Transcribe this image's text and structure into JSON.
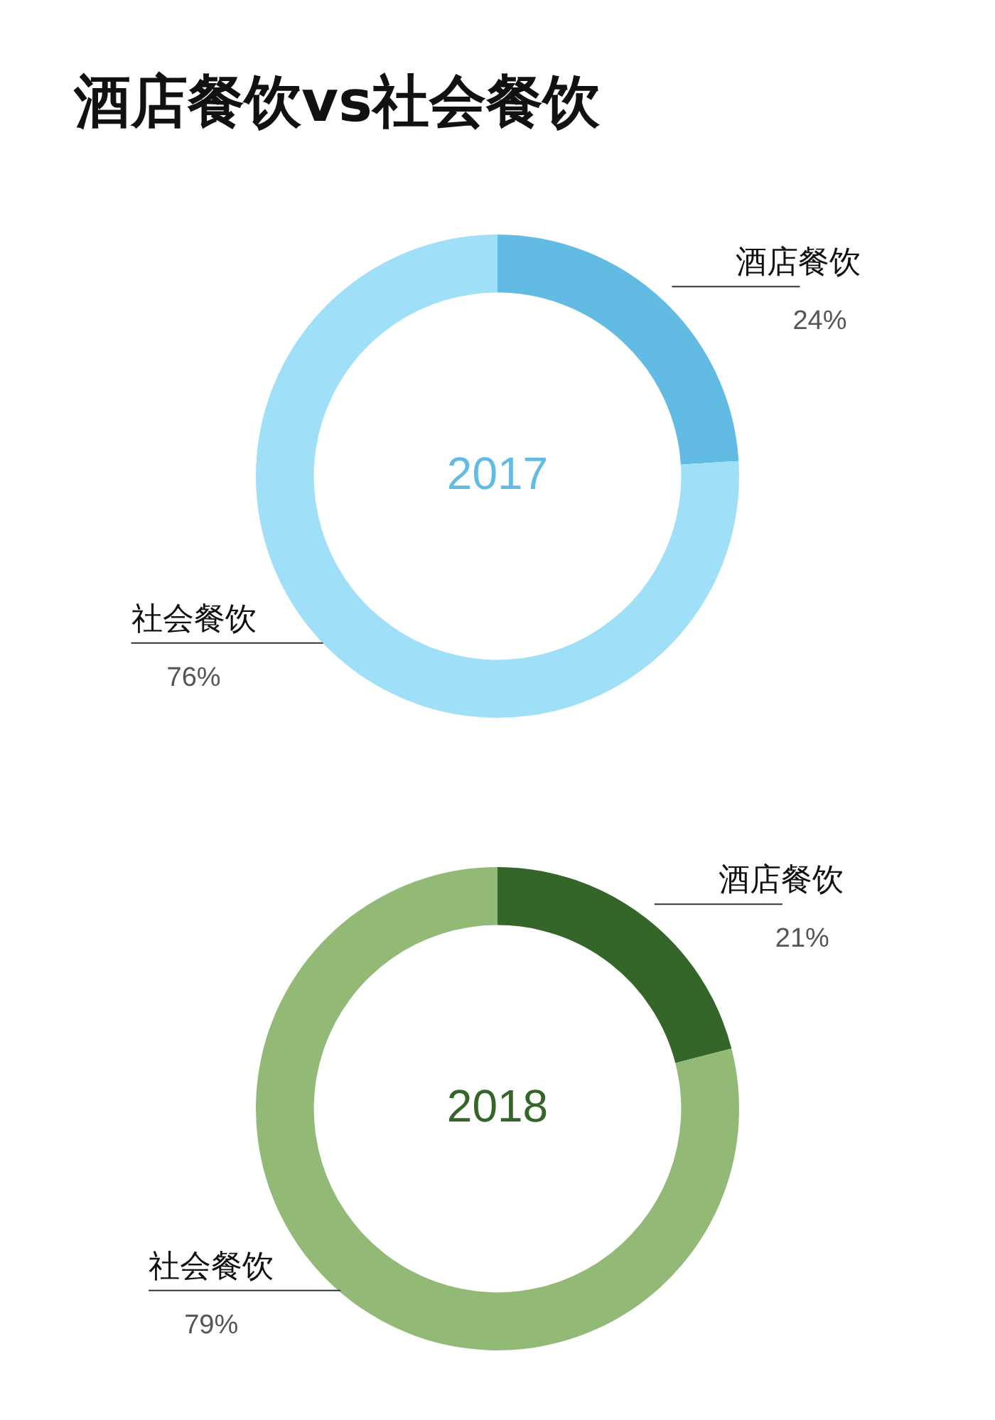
{
  "chart_data": [
    {
      "type": "donut",
      "title": "酒店餐饮vs社会餐饮",
      "categories": [
        "酒店餐饮",
        "社会餐饮"
      ],
      "values": [
        24,
        76
      ],
      "colors": [
        "#62bbe3",
        "#9fe0f8"
      ],
      "value_labels": [
        "24%",
        "76%"
      ],
      "annotations": [
        "2017"
      ]
    },
    {
      "type": "donut",
      "categories": [
        "酒店餐饮",
        "社会餐饮"
      ],
      "values": [
        21,
        79
      ],
      "colors": [
        "#336628",
        "#93b977"
      ],
      "value_labels": [
        "21%",
        "79%"
      ],
      "annotations": [
        "2018"
      ]
    }
  ]
}
